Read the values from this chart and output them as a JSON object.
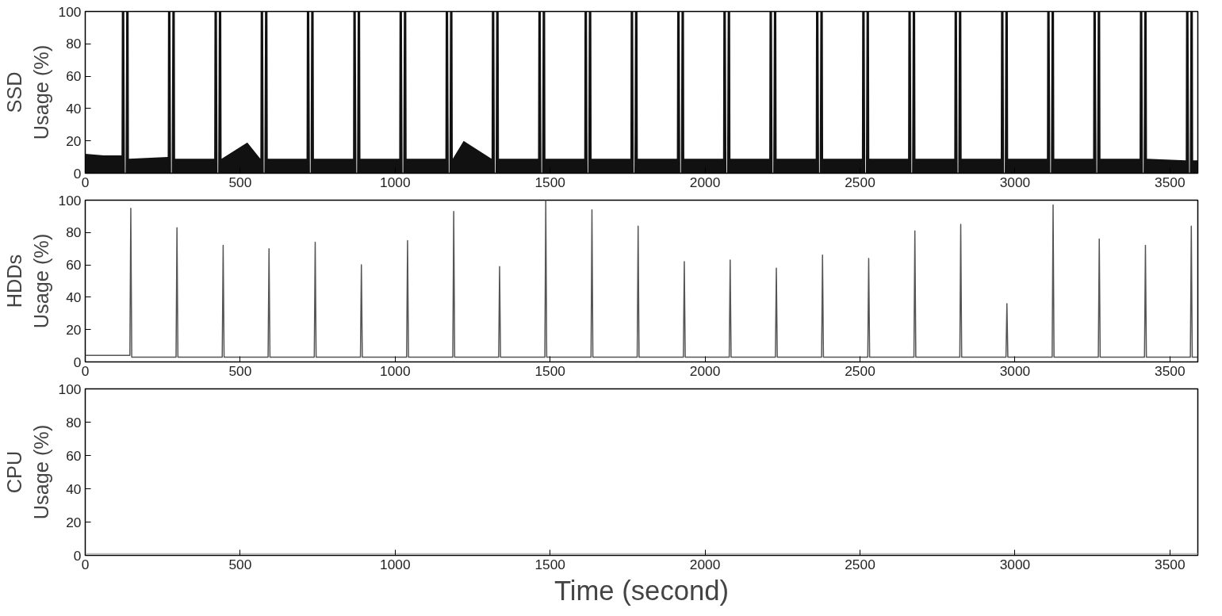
{
  "chart_data": [
    {
      "type": "area",
      "ylabel": "SSD\nUsage (%)",
      "xlim": [
        0,
        3590
      ],
      "ylim": [
        0,
        100
      ],
      "xticks": [
        0,
        500,
        1000,
        1500,
        2000,
        2500,
        3000,
        3500
      ],
      "yticks": [
        0,
        20,
        40,
        60,
        80,
        100
      ],
      "grid": false,
      "series": [
        {
          "color": "#111111",
          "x": [
            0,
            60,
            117,
            118,
            126,
            128,
            130,
            132,
            140,
            141,
            266,
            267,
            275,
            277,
            279,
            281,
            289,
            290,
            416,
            417,
            425,
            427,
            429,
            431,
            439,
            440,
            523,
            565,
            566,
            574,
            576,
            578,
            580,
            588,
            589,
            714,
            715,
            723,
            725,
            727,
            729,
            737,
            738,
            864,
            865,
            873,
            875,
            877,
            879,
            887,
            888,
            1013,
            1014,
            1022,
            1024,
            1026,
            1028,
            1036,
            1037,
            1162,
            1163,
            1171,
            1173,
            1175,
            1177,
            1185,
            1186,
            1221,
            1311,
            1312,
            1320,
            1322,
            1324,
            1326,
            1334,
            1335,
            1461,
            1462,
            1470,
            1472,
            1474,
            1476,
            1484,
            1485,
            1610,
            1611,
            1619,
            1621,
            1623,
            1625,
            1633,
            1634,
            1759,
            1760,
            1768,
            1770,
            1772,
            1774,
            1782,
            1783,
            1909,
            1910,
            1918,
            1920,
            1922,
            1924,
            1932,
            1933,
            2058,
            2059,
            2067,
            2069,
            2071,
            2073,
            2081,
            2082,
            2207,
            2208,
            2216,
            2218,
            2220,
            2222,
            2230,
            2231,
            2357,
            2358,
            2366,
            2368,
            2370,
            2372,
            2380,
            2381,
            2506,
            2507,
            2515,
            2517,
            2519,
            2521,
            2529,
            2530,
            2655,
            2656,
            2664,
            2666,
            2668,
            2670,
            2678,
            2679,
            2804,
            2805,
            2813,
            2815,
            2817,
            2819,
            2827,
            2828,
            2954,
            2955,
            2963,
            2965,
            2967,
            2969,
            2977,
            2978,
            3103,
            3104,
            3112,
            3114,
            3116,
            3118,
            3126,
            3127,
            3252,
            3253,
            3261,
            3263,
            3265,
            3267,
            3275,
            3276,
            3402,
            3403,
            3411,
            3413,
            3415,
            3417,
            3425,
            3426,
            3551,
            3552,
            3560,
            3562,
            3564,
            3566,
            3574,
            3575,
            3590
          ],
          "values": [
            12,
            11,
            11,
            100,
            100,
            0,
            0,
            100,
            100,
            9,
            10,
            100,
            100,
            0,
            0,
            100,
            100,
            9,
            9,
            100,
            100,
            0,
            0,
            100,
            100,
            9,
            19,
            9,
            100,
            100,
            0,
            0,
            100,
            100,
            9,
            9,
            100,
            100,
            0,
            0,
            100,
            100,
            9,
            9,
            100,
            100,
            0,
            0,
            100,
            100,
            9,
            9,
            100,
            100,
            0,
            0,
            100,
            100,
            9,
            9,
            100,
            100,
            0,
            0,
            100,
            100,
            9,
            20,
            9,
            100,
            100,
            0,
            0,
            100,
            100,
            9,
            9,
            100,
            100,
            0,
            0,
            100,
            100,
            9,
            9,
            100,
            100,
            0,
            0,
            100,
            100,
            9,
            9,
            100,
            100,
            0,
            0,
            100,
            100,
            9,
            9,
            100,
            100,
            0,
            0,
            100,
            100,
            9,
            9,
            100,
            100,
            0,
            0,
            100,
            100,
            9,
            9,
            100,
            100,
            0,
            0,
            100,
            100,
            9,
            9,
            100,
            100,
            0,
            0,
            100,
            100,
            9,
            9,
            100,
            100,
            0,
            0,
            100,
            100,
            9,
            9,
            100,
            100,
            0,
            0,
            100,
            100,
            9,
            9,
            100,
            100,
            0,
            0,
            100,
            100,
            9,
            9,
            100,
            100,
            0,
            0,
            100,
            100,
            9,
            9,
            100,
            100,
            0,
            0,
            100,
            100,
            9,
            9,
            100,
            100,
            0,
            0,
            100,
            100,
            9,
            9,
            100,
            100,
            0,
            0,
            100,
            100,
            9,
            8,
            100,
            100,
            0,
            0,
            100,
            100,
            8,
            8
          ]
        }
      ]
    },
    {
      "type": "line",
      "ylabel": "HDDs\nUsage (%)",
      "xlim": [
        0,
        3590
      ],
      "ylim": [
        0,
        100
      ],
      "xticks": [
        0,
        500,
        1000,
        1500,
        2000,
        2500,
        3000,
        3500
      ],
      "yticks": [
        0,
        20,
        40,
        60,
        80,
        100
      ],
      "grid": false,
      "series": [
        {
          "color": "#555555",
          "x": [
            0,
            144,
            147,
            150,
            293,
            296,
            299,
            442,
            445,
            448,
            590,
            593,
            596,
            739,
            742,
            745,
            888,
            891,
            894,
            1037,
            1040,
            1043,
            1186,
            1189,
            1192,
            1334,
            1337,
            1340,
            1483,
            1486,
            1489,
            1632,
            1635,
            1638,
            1781,
            1784,
            1787,
            1930,
            1933,
            1936,
            2078,
            2081,
            2084,
            2227,
            2230,
            2233,
            2376,
            2379,
            2382,
            2525,
            2528,
            2531,
            2674,
            2677,
            2680,
            2822,
            2825,
            2828,
            2971,
            2974,
            2977,
            3120,
            3123,
            3126,
            3269,
            3272,
            3275,
            3418,
            3421,
            3424,
            3566,
            3569,
            3572,
            3590
          ],
          "values": [
            4,
            4,
            95,
            3,
            3,
            83,
            3,
            3,
            72,
            3,
            3,
            70,
            3,
            3,
            74,
            3,
            3,
            60,
            3,
            3,
            75,
            3,
            3,
            93,
            3,
            3,
            59,
            3,
            3,
            100,
            3,
            3,
            94,
            3,
            3,
            84,
            3,
            3,
            62,
            3,
            3,
            63,
            3,
            3,
            58,
            3,
            3,
            66,
            3,
            3,
            64,
            3,
            3,
            81,
            3,
            3,
            85,
            3,
            3,
            36,
            3,
            3,
            97,
            3,
            3,
            76,
            3,
            3,
            72,
            3,
            3,
            84,
            3,
            3
          ]
        }
      ]
    },
    {
      "type": "line",
      "ylabel": "CPU\nUsage (%)",
      "xlabel": "Time (second)",
      "xlim": [
        0,
        3590
      ],
      "ylim": [
        0,
        100
      ],
      "xticks": [
        0,
        500,
        1000,
        1500,
        2000,
        2500,
        3000,
        3500
      ],
      "yticks": [
        0,
        20,
        40,
        60,
        80,
        100
      ],
      "grid": false,
      "series": [
        {
          "color": "#bbbbbb",
          "x": [
            0,
            500,
            1000,
            1500,
            2000,
            2500,
            3000,
            3590
          ],
          "values": [
            1,
            1,
            1,
            1,
            1,
            1,
            1,
            1
          ]
        }
      ]
    }
  ]
}
